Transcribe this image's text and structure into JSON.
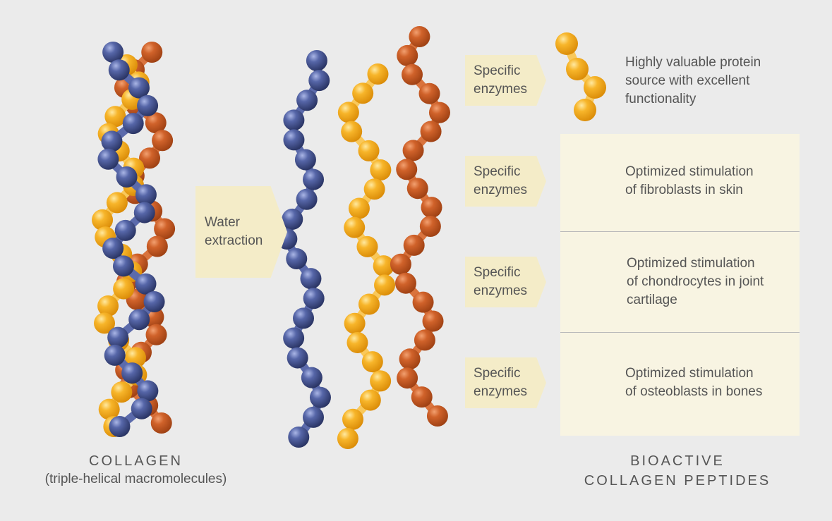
{
  "left_caption": {
    "title": "COLLAGEN",
    "subtitle": "(triple-helical macromolecules)"
  },
  "right_caption": {
    "line1": "BIOACTIVE",
    "line2": "COLLAGEN PEPTIDES"
  },
  "water_step": {
    "label": "Water\nextraction"
  },
  "enzyme_label": "Specific\nenzymes",
  "peptides": [
    {
      "description": "Highly valuable protein\nsource with excellent\nfunctionality"
    },
    {
      "description": "Optimized stimulation\nof fibroblasts in skin"
    },
    {
      "description": "Optimized stimulation\nof chondrocytes in joint\ncartilage"
    },
    {
      "description": "Optimized stimulation\nof osteoblasts in bones"
    }
  ],
  "colors": {
    "blue_chain": "#3c4a8e",
    "yellow_chain": "#f5a81c",
    "orange_chain": "#c8561e",
    "arrow_fill": "#f4ecc8",
    "panel_fill": "#f8f4e2",
    "background": "#ebebeb"
  }
}
